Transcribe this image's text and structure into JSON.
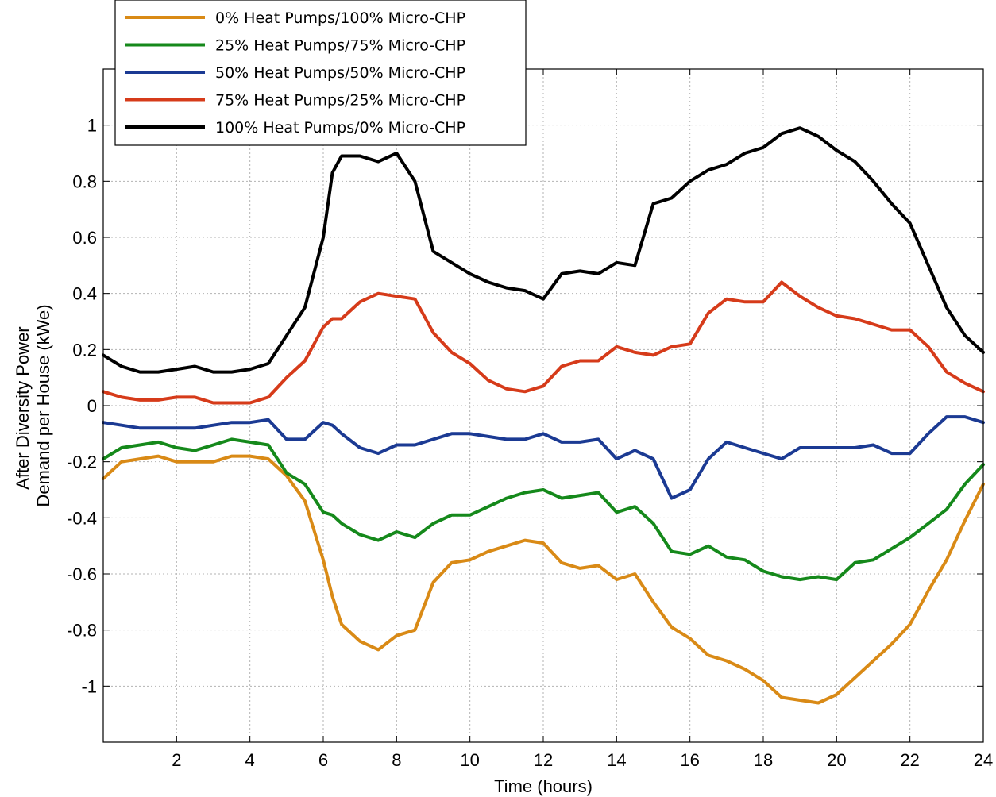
{
  "chart_data": {
    "type": "line",
    "title": "",
    "xlabel": "Time (hours)",
    "ylabel_lines": [
      "After Diversity Power",
      "Demand per House (kWe)"
    ],
    "xlim": [
      0,
      24
    ],
    "ylim": [
      -1.2,
      1.2
    ],
    "xticks": [
      2,
      4,
      6,
      8,
      10,
      12,
      14,
      16,
      18,
      20,
      22,
      24
    ],
    "yticks": [
      -1,
      -0.8,
      -0.6,
      -0.4,
      -0.2,
      0,
      0.2,
      0.4,
      0.6,
      0.8,
      1
    ],
    "xtick_labels": [
      "2",
      "4",
      "6",
      "8",
      "10",
      "12",
      "14",
      "16",
      "18",
      "20",
      "22",
      "24"
    ],
    "ytick_labels": [
      "-1",
      "-0.8",
      "-0.6",
      "-0.4",
      "-0.2",
      "0",
      "0.2",
      "0.4",
      "0.6",
      "0.8",
      "1"
    ],
    "grid": true,
    "legend_position": "top-left",
    "x": [
      0,
      0.5,
      1,
      1.5,
      2,
      2.5,
      3,
      3.5,
      4,
      4.5,
      5,
      5.5,
      6,
      6.25,
      6.5,
      7,
      7.5,
      8,
      8.5,
      9,
      9.5,
      10,
      10.5,
      11,
      11.5,
      12,
      12.5,
      13,
      13.5,
      14,
      14.5,
      15,
      15.5,
      16,
      16.5,
      17,
      17.5,
      18,
      18.5,
      19,
      19.5,
      20,
      20.5,
      21,
      21.5,
      22,
      22.5,
      23,
      23.5,
      24
    ],
    "series": [
      {
        "name": "0% Heat Pumps/100% Micro-CHP",
        "color": "#d98a16",
        "values": [
          -0.26,
          -0.2,
          -0.19,
          -0.18,
          -0.2,
          -0.2,
          -0.2,
          -0.18,
          -0.18,
          -0.19,
          -0.25,
          -0.34,
          -0.55,
          -0.68,
          -0.78,
          -0.84,
          -0.87,
          -0.82,
          -0.8,
          -0.63,
          -0.56,
          -0.55,
          -0.52,
          -0.5,
          -0.48,
          -0.49,
          -0.56,
          -0.58,
          -0.57,
          -0.62,
          -0.6,
          -0.7,
          -0.79,
          -0.83,
          -0.89,
          -0.91,
          -0.94,
          -0.98,
          -1.04,
          -1.05,
          -1.06,
          -1.03,
          -0.97,
          -0.91,
          -0.85,
          -0.78,
          -0.66,
          -0.55,
          -0.41,
          -0.28
        ]
      },
      {
        "name": "25% Heat Pumps/75% Micro-CHP",
        "color": "#15891b",
        "values": [
          -0.19,
          -0.15,
          -0.14,
          -0.13,
          -0.15,
          -0.16,
          -0.14,
          -0.12,
          -0.13,
          -0.14,
          -0.24,
          -0.28,
          -0.38,
          -0.39,
          -0.42,
          -0.46,
          -0.48,
          -0.45,
          -0.47,
          -0.42,
          -0.39,
          -0.39,
          -0.36,
          -0.33,
          -0.31,
          -0.3,
          -0.33,
          -0.32,
          -0.31,
          -0.38,
          -0.36,
          -0.42,
          -0.52,
          -0.53,
          -0.5,
          -0.54,
          -0.55,
          -0.59,
          -0.61,
          -0.62,
          -0.61,
          -0.62,
          -0.56,
          -0.55,
          -0.51,
          -0.47,
          -0.42,
          -0.37,
          -0.28,
          -0.21
        ]
      },
      {
        "name": "50% Heat Pumps/50% Micro-CHP",
        "color": "#1b3a93",
        "values": [
          -0.06,
          -0.07,
          -0.08,
          -0.08,
          -0.08,
          -0.08,
          -0.07,
          -0.06,
          -0.06,
          -0.05,
          -0.12,
          -0.12,
          -0.06,
          -0.07,
          -0.1,
          -0.15,
          -0.17,
          -0.14,
          -0.14,
          -0.12,
          -0.1,
          -0.1,
          -0.11,
          -0.12,
          -0.12,
          -0.1,
          -0.13,
          -0.13,
          -0.12,
          -0.19,
          -0.16,
          -0.19,
          -0.33,
          -0.3,
          -0.19,
          -0.13,
          -0.15,
          -0.17,
          -0.19,
          -0.15,
          -0.15,
          -0.15,
          -0.15,
          -0.14,
          -0.17,
          -0.17,
          -0.1,
          -0.04,
          -0.04,
          -0.06
        ]
      },
      {
        "name": "75% Heat Pumps/25% Micro-CHP",
        "color": "#d63b1a",
        "values": [
          0.05,
          0.03,
          0.02,
          0.02,
          0.03,
          0.03,
          0.01,
          0.01,
          0.01,
          0.03,
          0.1,
          0.16,
          0.28,
          0.31,
          0.31,
          0.37,
          0.4,
          0.39,
          0.38,
          0.26,
          0.19,
          0.15,
          0.09,
          0.06,
          0.05,
          0.07,
          0.14,
          0.16,
          0.16,
          0.21,
          0.19,
          0.18,
          0.21,
          0.22,
          0.33,
          0.38,
          0.37,
          0.37,
          0.44,
          0.39,
          0.35,
          0.32,
          0.31,
          0.29,
          0.27,
          0.27,
          0.21,
          0.12,
          0.08,
          0.05
        ]
      },
      {
        "name": "100% Heat Pumps/0% Micro-CHP",
        "color": "#000000",
        "values": [
          0.18,
          0.14,
          0.12,
          0.12,
          0.13,
          0.14,
          0.12,
          0.12,
          0.13,
          0.15,
          0.25,
          0.35,
          0.6,
          0.83,
          0.89,
          0.89,
          0.87,
          0.9,
          0.8,
          0.55,
          0.51,
          0.47,
          0.44,
          0.42,
          0.41,
          0.38,
          0.47,
          0.48,
          0.47,
          0.51,
          0.5,
          0.72,
          0.74,
          0.8,
          0.84,
          0.86,
          0.9,
          0.92,
          0.97,
          0.99,
          0.96,
          0.91,
          0.87,
          0.8,
          0.72,
          0.65,
          0.5,
          0.35,
          0.25,
          0.19
        ]
      }
    ]
  }
}
